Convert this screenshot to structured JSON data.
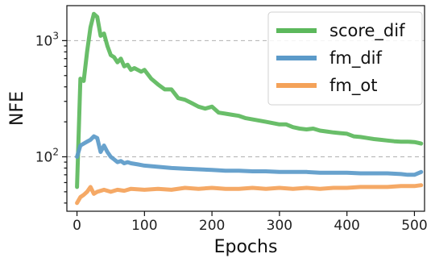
{
  "chart_data": {
    "type": "line",
    "xlabel": "Epochs",
    "ylabel": "NFE",
    "xlim": [
      -15,
      515
    ],
    "ylim": [
      34,
      2000
    ],
    "yscale": "log",
    "xticks": [
      0,
      100,
      200,
      300,
      400,
      500
    ],
    "yticks": [
      {
        "value": 100,
        "base": "10",
        "exp": "2"
      },
      {
        "value": 1000,
        "base": "10",
        "exp": "3"
      }
    ],
    "grid": "horizontal dashed at major y ticks",
    "legend_position": "top-right",
    "series": [
      {
        "name": "score_dif",
        "color": "#5cb85c",
        "x": [
          0,
          5,
          10,
          15,
          20,
          25,
          30,
          35,
          40,
          45,
          50,
          55,
          60,
          65,
          70,
          75,
          80,
          85,
          90,
          95,
          100,
          110,
          120,
          130,
          140,
          150,
          160,
          170,
          180,
          190,
          200,
          210,
          220,
          230,
          240,
          250,
          260,
          270,
          280,
          290,
          300,
          310,
          320,
          330,
          340,
          350,
          360,
          370,
          380,
          390,
          400,
          410,
          420,
          430,
          440,
          450,
          460,
          470,
          480,
          490,
          500,
          505,
          510
        ],
        "y": [
          55,
          470,
          450,
          800,
          1300,
          1700,
          1600,
          1100,
          1150,
          900,
          750,
          720,
          650,
          700,
          600,
          620,
          560,
          580,
          560,
          540,
          560,
          470,
          420,
          380,
          380,
          320,
          310,
          290,
          270,
          260,
          270,
          240,
          235,
          230,
          225,
          215,
          210,
          205,
          200,
          195,
          190,
          190,
          180,
          175,
          172,
          175,
          168,
          165,
          162,
          160,
          158,
          150,
          148,
          145,
          142,
          140,
          138,
          136,
          135,
          135,
          134,
          132,
          130
        ]
      },
      {
        "name": "fm_dif",
        "color": "#5b9ac9",
        "x": [
          0,
          5,
          10,
          15,
          20,
          25,
          30,
          35,
          40,
          45,
          50,
          55,
          60,
          65,
          70,
          75,
          80,
          90,
          100,
          120,
          140,
          160,
          180,
          200,
          220,
          240,
          260,
          280,
          300,
          320,
          340,
          360,
          380,
          400,
          420,
          440,
          460,
          480,
          490,
          500,
          510
        ],
        "y": [
          100,
          125,
          130,
          135,
          140,
          150,
          145,
          110,
          125,
          110,
          100,
          95,
          90,
          92,
          88,
          90,
          88,
          86,
          84,
          82,
          80,
          79,
          78,
          77,
          76,
          76,
          75,
          75,
          74,
          74,
          74,
          73,
          73,
          73,
          72,
          72,
          72,
          71,
          70,
          70,
          74
        ]
      },
      {
        "name": "fm_ot",
        "color": "#f4a259",
        "x": [
          0,
          5,
          10,
          15,
          20,
          25,
          30,
          40,
          50,
          60,
          70,
          80,
          100,
          120,
          140,
          160,
          180,
          200,
          220,
          240,
          260,
          280,
          300,
          320,
          340,
          360,
          380,
          400,
          420,
          440,
          460,
          480,
          500,
          510
        ],
        "y": [
          40,
          45,
          47,
          50,
          55,
          48,
          50,
          52,
          50,
          52,
          51,
          53,
          52,
          53,
          52,
          54,
          53,
          54,
          53,
          53,
          54,
          53,
          54,
          53,
          54,
          53,
          54,
          54,
          55,
          55,
          55,
          56,
          56,
          57
        ]
      }
    ]
  }
}
